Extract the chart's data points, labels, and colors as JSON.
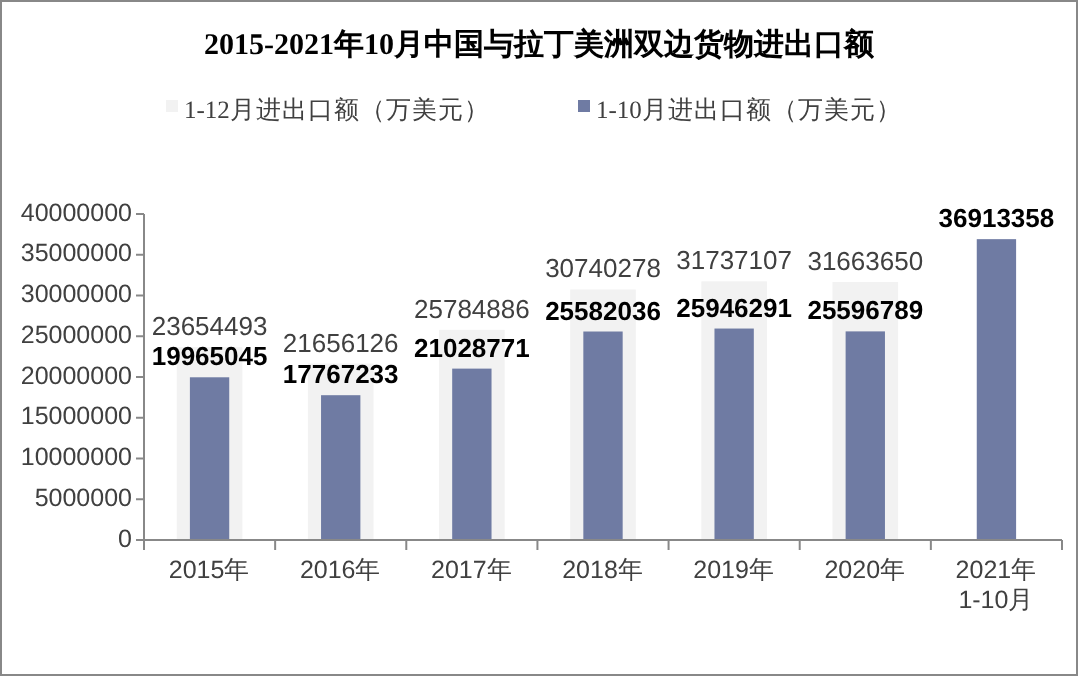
{
  "chart_data": {
    "type": "bar",
    "title": "2015-2021年10月中国与拉丁美洲双边货物进出口额",
    "categories": [
      "2015年",
      "2016年",
      "2017年",
      "2018年",
      "2019年",
      "2020年",
      "2021年\n1-10月"
    ],
    "series": [
      {
        "name": "1-12月进出口额（万美元）",
        "color": "#f2f2f2",
        "values": [
          23654493,
          21656126,
          25784886,
          30740278,
          31737107,
          31663650,
          null
        ]
      },
      {
        "name": "1-10月进出口额（万美元）",
        "color": "#6f7ba3",
        "values": [
          19965045,
          17767233,
          21028771,
          25582036,
          25946291,
          25596789,
          36913358
        ]
      }
    ],
    "ylim": [
      0,
      40000000
    ],
    "yticks": [
      0,
      5000000,
      10000000,
      15000000,
      20000000,
      25000000,
      30000000,
      35000000,
      40000000
    ],
    "grid": false,
    "legend": "top",
    "data_labels": true
  }
}
